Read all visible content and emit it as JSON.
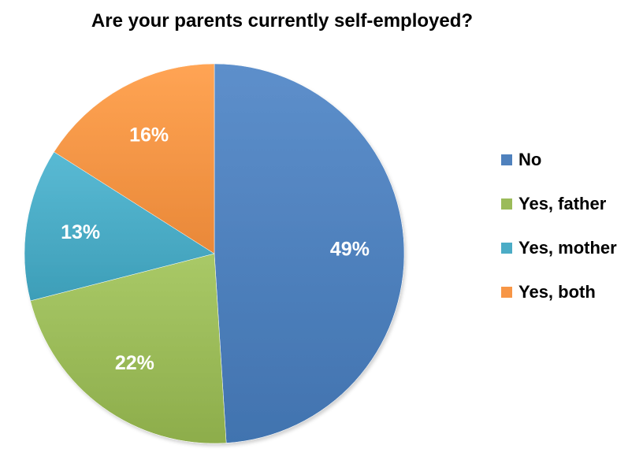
{
  "chart_data": {
    "type": "pie",
    "title": "Are your parents currently self-employed?",
    "categories": [
      "No",
      "Yes, father",
      "Yes, mother",
      "Yes, both"
    ],
    "values": [
      49,
      22,
      13,
      16
    ],
    "labels": [
      "49%",
      "22%",
      "13%",
      "16%"
    ],
    "colors": [
      "#4F81BD",
      "#9BBB59",
      "#4BACC6",
      "#F79646"
    ],
    "legend_position": "right"
  }
}
